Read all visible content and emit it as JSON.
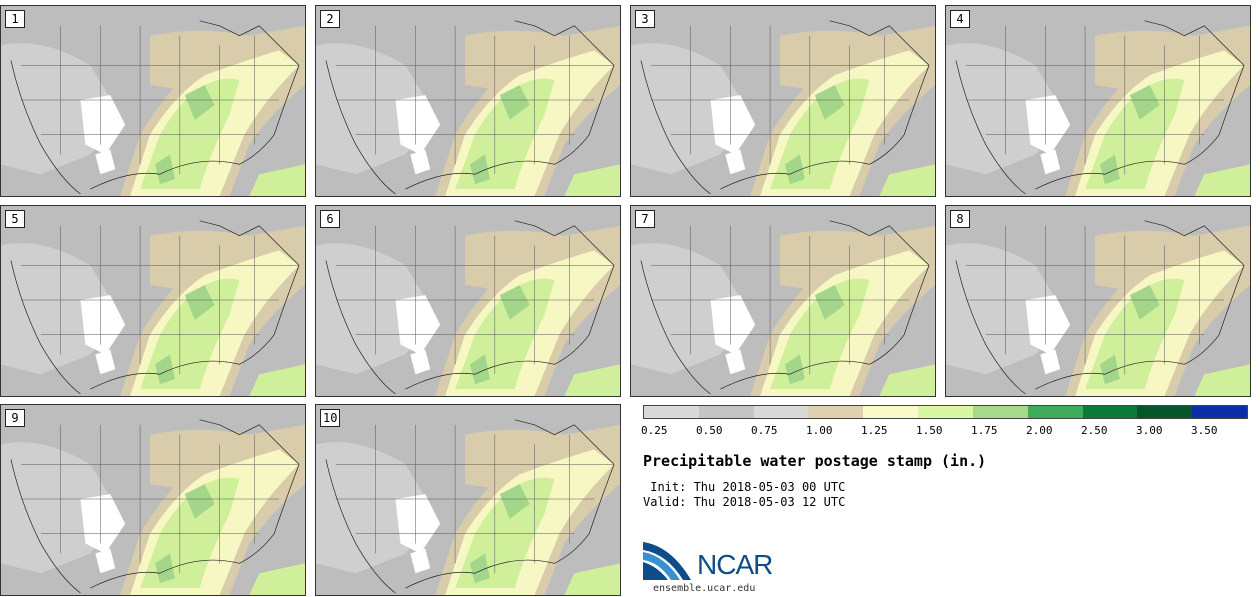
{
  "panels": [
    {
      "label": "1"
    },
    {
      "label": "2"
    },
    {
      "label": "3"
    },
    {
      "label": "4"
    },
    {
      "label": "5"
    },
    {
      "label": "6"
    },
    {
      "label": "7"
    },
    {
      "label": "8"
    },
    {
      "label": "9"
    },
    {
      "label": "10"
    }
  ],
  "colorbar": {
    "colors": [
      "#d9d9d9",
      "#c4c4c4",
      "#d9d9d9",
      "#ded0b0",
      "#fafac8",
      "#d9f7a0",
      "#a6d98a",
      "#41ab5d",
      "#0a7c3a",
      "#05552b",
      "#0a2fa8"
    ],
    "ticks": [
      "0.25",
      "0.50",
      "0.75",
      "1.00",
      "1.25",
      "1.50",
      "1.75",
      "2.00",
      "2.50",
      "3.00",
      "3.50"
    ]
  },
  "title": "Precipitable water postage stamp (in.)",
  "init": " Init: Thu 2018-05-03 00 UTC",
  "valid": "Valid: Thu 2018-05-03 12 UTC",
  "logo": {
    "text": "NCAR",
    "site": "ensemble.ucar.edu"
  }
}
